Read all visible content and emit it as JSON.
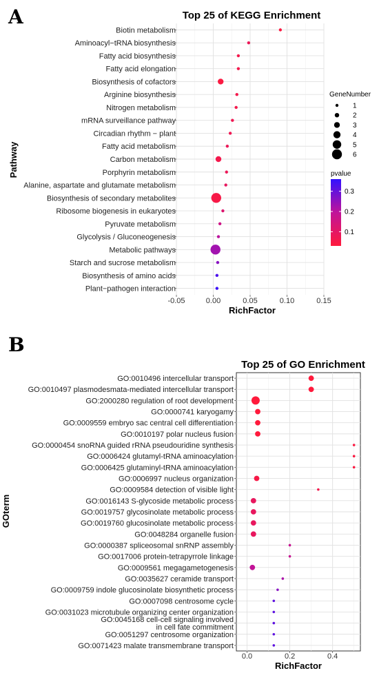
{
  "chart_data": [
    {
      "type": "scatter",
      "panel_label": "A",
      "title": "Top 25 of KEGG Enrichment",
      "xlabel": "RichFactor",
      "ylabel": "Pathway",
      "xlim": [
        -0.05,
        0.15
      ],
      "x_ticks": [
        "-0.05",
        "0.00",
        "0.05",
        "0.10",
        "0.15"
      ],
      "x_tick_values": [
        -0.05,
        0.0,
        0.05,
        0.1,
        0.15
      ],
      "grid": true,
      "size_legend": {
        "title": "GeneNumber",
        "values": [
          1,
          2,
          3,
          4,
          5,
          6
        ]
      },
      "color_legend": {
        "title": "pvalue",
        "ticks": [
          0.3,
          0.2,
          0.1
        ],
        "low_color": "#ff1a3c",
        "high_color": "#3311ff",
        "range": [
          0.03,
          0.36
        ]
      },
      "categories": [
        "Biotin metabolism",
        "Aminoacyl−tRNA biosynthesis",
        "Fatty acid biosynthesis",
        "Fatty acid elongation",
        "Biosynthesis of cofactors",
        "Arginine biosynthesis",
        "Nitrogen metabolism",
        "mRNA surveillance pathway",
        "Circadian rhythm − plant",
        "Fatty acid metabolism",
        "Carbon metabolism",
        "Porphyrin metabolism",
        "Alanine, aspartate and glutamate metabolism",
        "Biosynthesis of secondary metabolites",
        "Ribosome biogenesis in eukaryotes",
        "Pyruvate metabolism",
        "Glycolysis / Gluconeogenesis",
        "Metabolic pathways",
        "Starch and sucrose metabolism",
        "Biosynthesis of amino acids",
        "Plant−pathogen interaction"
      ],
      "x": [
        0.091,
        0.048,
        0.034,
        0.034,
        0.01,
        0.032,
        0.031,
        0.026,
        0.023,
        0.019,
        0.007,
        0.018,
        0.017,
        0.004,
        0.013,
        0.009,
        0.007,
        0.003,
        0.006,
        0.005,
        0.005
      ],
      "gene_number": [
        1,
        1,
        1,
        1,
        3,
        1,
        1,
        1,
        1,
        1,
        3,
        1,
        1,
        6,
        1,
        1,
        1,
        6,
        1,
        1,
        1
      ],
      "pvalue": [
        0.04,
        0.08,
        0.06,
        0.06,
        0.04,
        0.06,
        0.06,
        0.07,
        0.07,
        0.08,
        0.06,
        0.08,
        0.09,
        0.05,
        0.12,
        0.16,
        0.2,
        0.23,
        0.26,
        0.33,
        0.35
      ]
    },
    {
      "type": "scatter",
      "panel_label": "B",
      "title": "Top 25 of GO Enrichment",
      "xlabel": "RichFactor",
      "ylabel": "GOterm",
      "xlim": [
        -0.05,
        0.53
      ],
      "x_ticks": [
        "0.0",
        "0.2",
        "0.4"
      ],
      "x_tick_values": [
        0.0,
        0.2,
        0.4
      ],
      "grid": true,
      "categories": [
        "GO:0010496 intercellular transport",
        "GO:0010497 plasmodesmata-mediated intercellular transport",
        "GO:2000280 regulation of root development",
        "GO:0000741 karyogamy",
        "GO:0009559 embryo sac central cell differentiation",
        "GO:0010197 polar nucleus fusion",
        "GO:0000454 snoRNA guided rRNA pseudouridine synthesis",
        "GO:0006424 glutamyl-tRNA aminoacylation",
        "GO:0006425 glutaminyl-tRNA aminoacylation",
        "GO:0006997 nucleus organization",
        "GO:0009584 detection of visible light",
        "GO:0016143 S-glycoside metabolic process",
        "GO:0019757 glycosinolate metabolic process",
        "GO:0019760 glucosinolate metabolic process",
        "GO:0048284 organelle fusion",
        "GO:0000387 spliceosomal snRNP assembly",
        "GO:0017006 protein-tetrapyrrole linkage",
        "GO:0009561 megagametogenesis",
        "GO:0035627 ceramide transport",
        "GO:0009759 indole glucosinolate biosynthetic process",
        "GO:0007098 centrosome cycle",
        "GO:0031023 microtubule organizing center organization",
        "GO:0045168 cell-cell signaling involved\nin cell fate commitment",
        "GO:0051297 centrosome organization",
        "GO:0071423 malate transmembrane transport"
      ],
      "x": [
        0.3,
        0.3,
        0.04,
        0.05,
        0.05,
        0.05,
        0.5,
        0.5,
        0.5,
        0.045,
        0.333,
        0.03,
        0.03,
        0.03,
        0.03,
        0.2,
        0.2,
        0.025,
        0.167,
        0.143,
        0.125,
        0.125,
        0.125,
        0.125,
        0.125
      ],
      "gene_number": [
        2,
        2,
        3,
        2,
        2,
        2,
        1,
        1,
        1,
        2,
        1,
        2,
        2,
        2,
        2,
        1,
        1,
        2,
        1,
        1,
        1,
        1,
        1,
        1,
        1
      ],
      "pvalue": [
        0.02,
        0.02,
        0.03,
        0.03,
        0.03,
        0.03,
        0.04,
        0.04,
        0.04,
        0.05,
        0.06,
        0.09,
        0.09,
        0.09,
        0.09,
        0.18,
        0.18,
        0.19,
        0.22,
        0.26,
        0.31,
        0.31,
        0.31,
        0.31,
        0.31
      ]
    }
  ]
}
